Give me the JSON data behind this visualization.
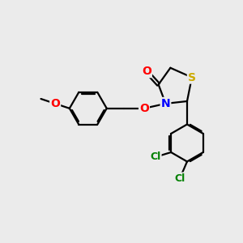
{
  "background_color": "#ebebeb",
  "atom_colors": {
    "C": "#000000",
    "N": "#0000ff",
    "O": "#ff0000",
    "S": "#ccaa00",
    "Cl": "#008000"
  },
  "bond_color": "#000000",
  "bond_width": 1.6,
  "font_size_atom": 10
}
